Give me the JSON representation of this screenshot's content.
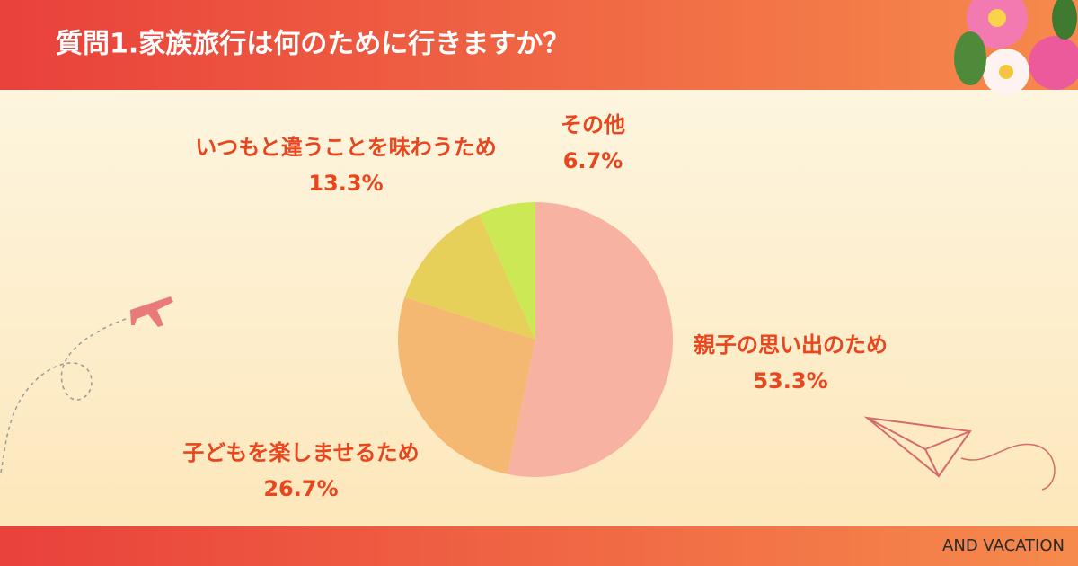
{
  "title": "質問1.家族旅行は何のために行きますか？",
  "footer": "AND VACATION",
  "chart_data": {
    "type": "pie",
    "categories": [
      "親子の思い出のため",
      "子どもを楽しませるため",
      "いつもと違うことを味わうため",
      "その他"
    ],
    "values": [
      53.3,
      26.7,
      13.3,
      6.7
    ],
    "value_labels": [
      "53.3%",
      "26.7%",
      "13.3%",
      "6.7%"
    ],
    "colors": [
      "#f8b2a2",
      "#f5b872",
      "#e6d05a",
      "#cde855"
    ]
  }
}
